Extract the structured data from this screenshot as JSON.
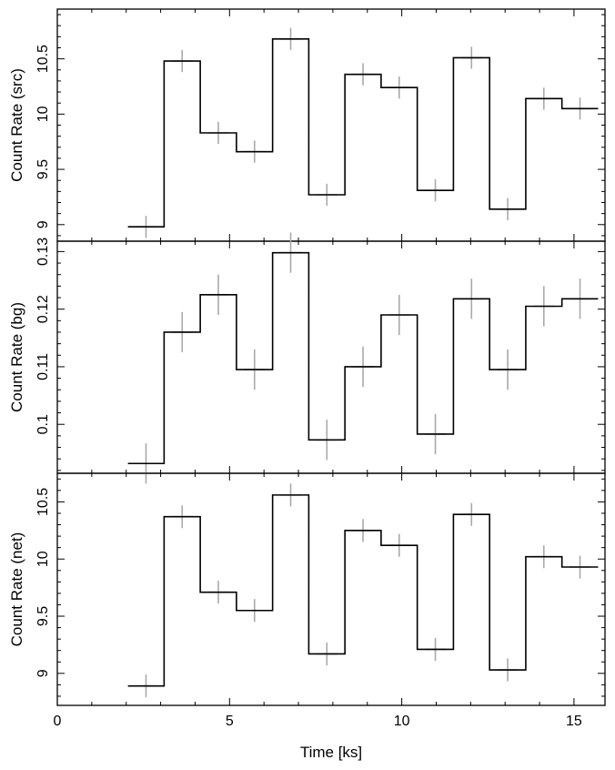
{
  "chart_data": [
    {
      "type": "line",
      "panel": "src",
      "ylabel": "Count Rate (src)",
      "ylim": [
        8.85,
        10.95
      ],
      "yticks": [
        9,
        9.5,
        10,
        10.5
      ],
      "ytick_labels": [
        "9",
        "9.5",
        "10",
        "10.5"
      ],
      "xlim": [
        0,
        15.9
      ],
      "bins": [
        {
          "x0": 2.05,
          "x1": 3.1,
          "y": 8.98,
          "err": 0.1
        },
        {
          "x0": 3.1,
          "x1": 4.15,
          "y": 10.48,
          "err": 0.1
        },
        {
          "x0": 4.15,
          "x1": 5.2,
          "y": 9.83,
          "err": 0.1
        },
        {
          "x0": 5.2,
          "x1": 6.25,
          "y": 9.66,
          "err": 0.1
        },
        {
          "x0": 6.25,
          "x1": 7.3,
          "y": 10.68,
          "err": 0.1
        },
        {
          "x0": 7.3,
          "x1": 8.35,
          "y": 9.27,
          "err": 0.1
        },
        {
          "x0": 8.35,
          "x1": 9.4,
          "y": 10.36,
          "err": 0.1
        },
        {
          "x0": 9.4,
          "x1": 10.45,
          "y": 10.24,
          "err": 0.1
        },
        {
          "x0": 10.45,
          "x1": 11.5,
          "y": 9.31,
          "err": 0.1
        },
        {
          "x0": 11.5,
          "x1": 12.55,
          "y": 10.51,
          "err": 0.1
        },
        {
          "x0": 12.55,
          "x1": 13.6,
          "y": 9.14,
          "err": 0.1
        },
        {
          "x0": 13.6,
          "x1": 14.65,
          "y": 10.14,
          "err": 0.1
        },
        {
          "x0": 14.65,
          "x1": 15.7,
          "y": 10.05,
          "err": 0.1
        }
      ]
    },
    {
      "type": "line",
      "panel": "bg",
      "ylabel": "Count Rate (bg)",
      "ylim": [
        0.0915,
        0.1318
      ],
      "yticks": [
        0.1,
        0.11,
        0.12,
        0.13
      ],
      "ytick_labels": [
        "0.1",
        "0.11",
        "0.12",
        "0.13"
      ],
      "xlim": [
        0,
        15.9
      ],
      "bins": [
        {
          "x0": 2.05,
          "x1": 3.1,
          "y": 0.0932,
          "err": 0.0035
        },
        {
          "x0": 3.1,
          "x1": 4.15,
          "y": 0.116,
          "err": 0.0035
        },
        {
          "x0": 4.15,
          "x1": 5.2,
          "y": 0.1225,
          "err": 0.0035
        },
        {
          "x0": 5.2,
          "x1": 6.25,
          "y": 0.1095,
          "err": 0.0035
        },
        {
          "x0": 6.25,
          "x1": 7.3,
          "y": 0.1298,
          "err": 0.0035
        },
        {
          "x0": 7.3,
          "x1": 8.35,
          "y": 0.0973,
          "err": 0.0035
        },
        {
          "x0": 8.35,
          "x1": 9.4,
          "y": 0.11,
          "err": 0.0035
        },
        {
          "x0": 9.4,
          "x1": 10.45,
          "y": 0.119,
          "err": 0.0035
        },
        {
          "x0": 10.45,
          "x1": 11.5,
          "y": 0.0983,
          "err": 0.0035
        },
        {
          "x0": 11.5,
          "x1": 12.55,
          "y": 0.1218,
          "err": 0.0035
        },
        {
          "x0": 12.55,
          "x1": 13.6,
          "y": 0.1095,
          "err": 0.0035
        },
        {
          "x0": 13.6,
          "x1": 14.65,
          "y": 0.1205,
          "err": 0.0035
        },
        {
          "x0": 14.65,
          "x1": 15.7,
          "y": 0.1218,
          "err": 0.0035
        }
      ]
    },
    {
      "type": "line",
      "panel": "net",
      "ylabel": "Count Rate (net)",
      "ylim": [
        8.72,
        10.75
      ],
      "yticks": [
        9,
        9.5,
        10,
        10.5
      ],
      "ytick_labels": [
        "9",
        "9.5",
        "10",
        "10.5"
      ],
      "xlim": [
        0,
        15.9
      ],
      "xlabel": "Time [ks]",
      "xticks": [
        0,
        5,
        10,
        15
      ],
      "xtick_labels": [
        "0",
        "5",
        "10",
        "15"
      ],
      "bins": [
        {
          "x0": 2.05,
          "x1": 3.1,
          "y": 8.89,
          "err": 0.1
        },
        {
          "x0": 3.1,
          "x1": 4.15,
          "y": 10.37,
          "err": 0.1
        },
        {
          "x0": 4.15,
          "x1": 5.2,
          "y": 9.71,
          "err": 0.1
        },
        {
          "x0": 5.2,
          "x1": 6.25,
          "y": 9.55,
          "err": 0.1
        },
        {
          "x0": 6.25,
          "x1": 7.3,
          "y": 10.56,
          "err": 0.1
        },
        {
          "x0": 7.3,
          "x1": 8.35,
          "y": 9.17,
          "err": 0.1
        },
        {
          "x0": 8.35,
          "x1": 9.4,
          "y": 10.25,
          "err": 0.1
        },
        {
          "x0": 9.4,
          "x1": 10.45,
          "y": 10.12,
          "err": 0.1
        },
        {
          "x0": 10.45,
          "x1": 11.5,
          "y": 9.21,
          "err": 0.1
        },
        {
          "x0": 11.5,
          "x1": 12.55,
          "y": 10.39,
          "err": 0.1
        },
        {
          "x0": 12.55,
          "x1": 13.6,
          "y": 9.03,
          "err": 0.1
        },
        {
          "x0": 13.6,
          "x1": 14.65,
          "y": 10.02,
          "err": 0.1
        },
        {
          "x0": 14.65,
          "x1": 15.7,
          "y": 9.93,
          "err": 0.1
        }
      ]
    }
  ]
}
